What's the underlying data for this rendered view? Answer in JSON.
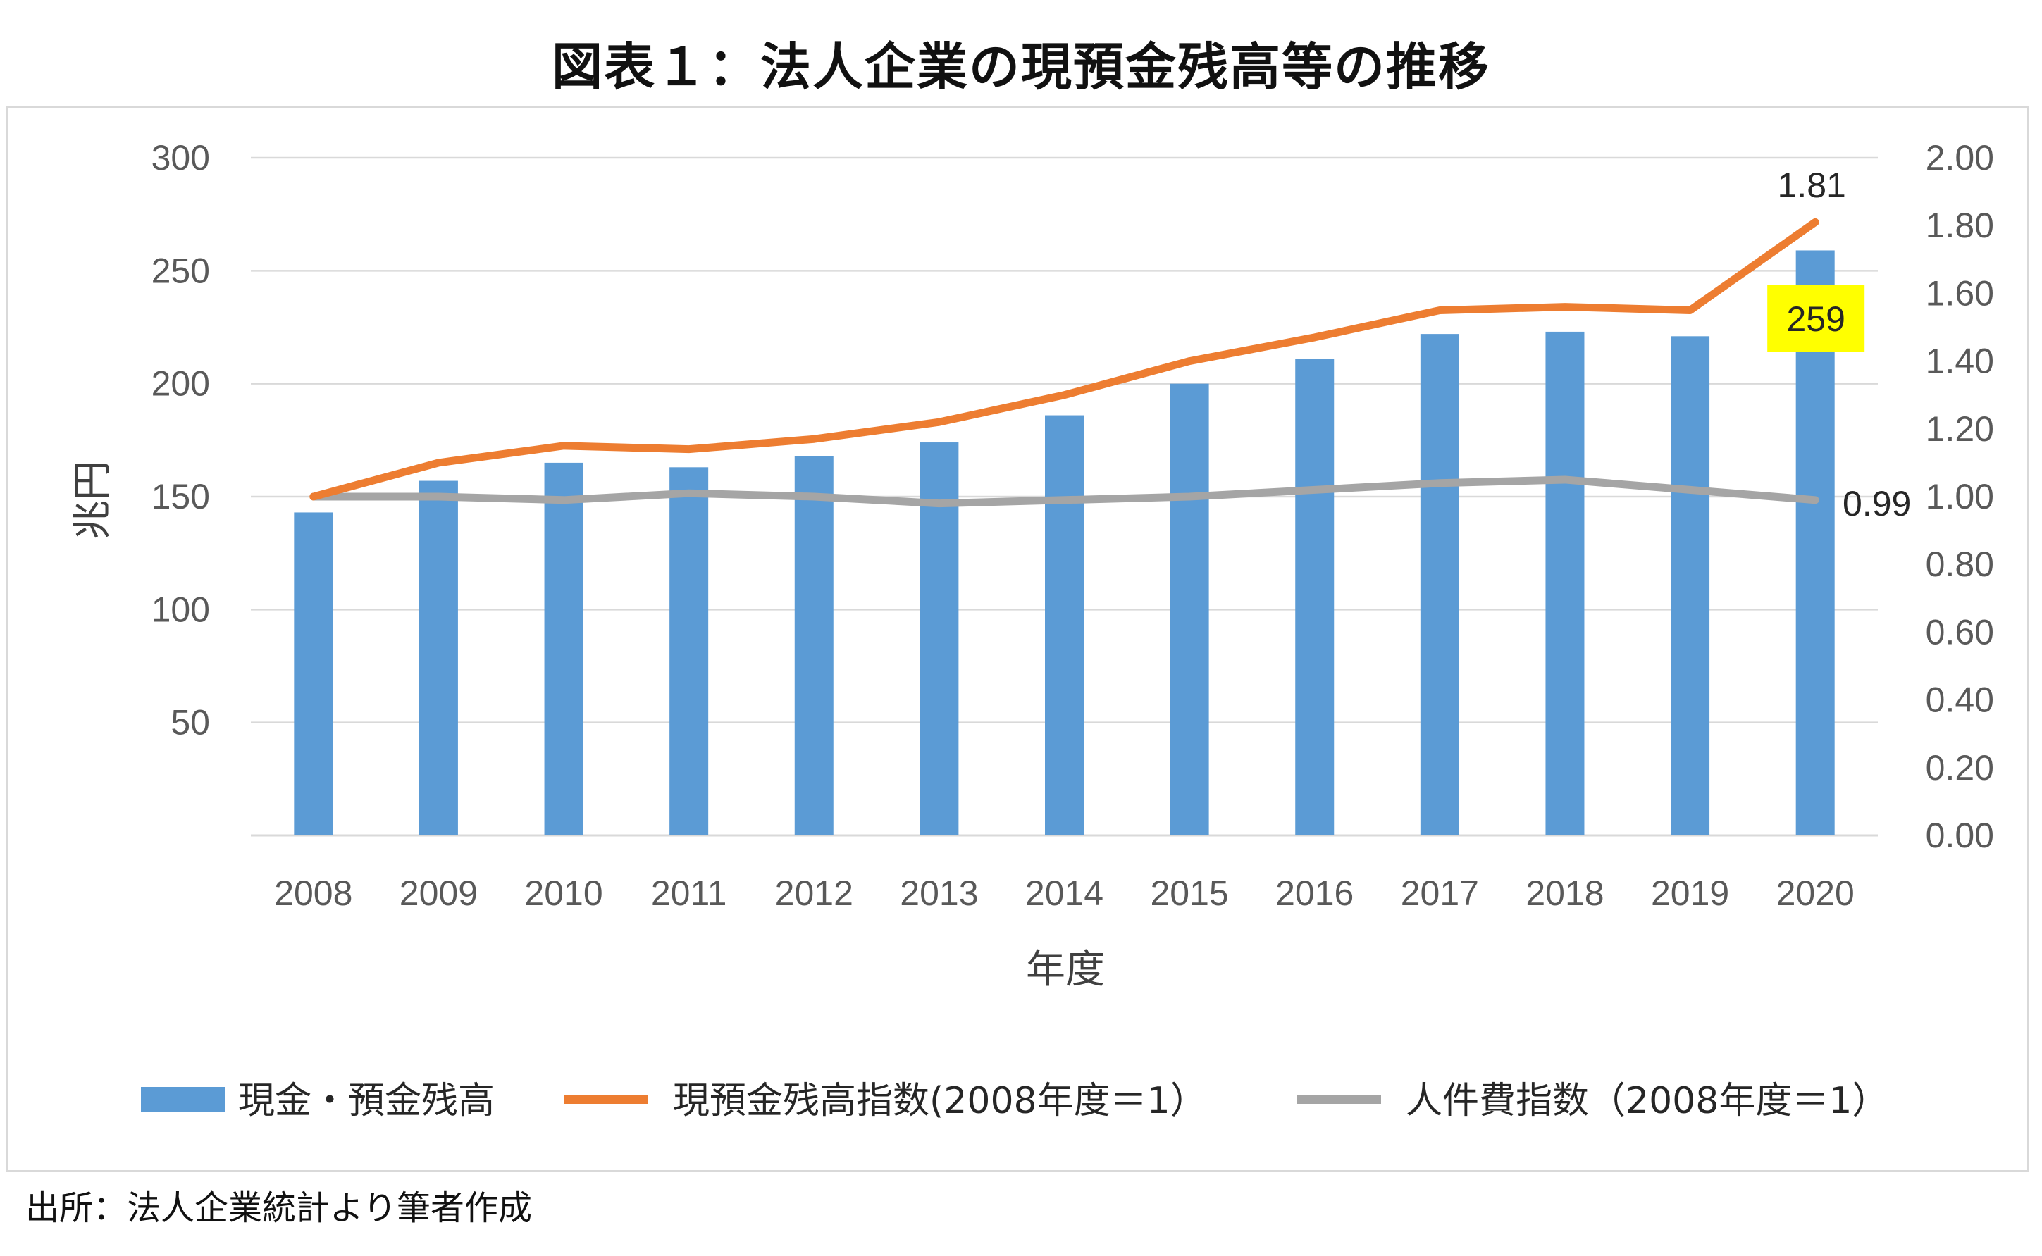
{
  "title": "図表１：法人企業の現預金残高等の推移",
  "source": "出所：法人企業統計より筆者作成",
  "chart_data": {
    "type": "bar",
    "categories": [
      "2008",
      "2009",
      "2010",
      "2011",
      "2012",
      "2013",
      "2014",
      "2015",
      "2016",
      "2017",
      "2018",
      "2019",
      "2020"
    ],
    "xlabel": "年度",
    "ylabel": "兆円",
    "ylim": [
      0,
      300
    ],
    "y_ticks": [
      "50",
      "100",
      "150",
      "200",
      "250",
      "300"
    ],
    "y2lim": [
      0,
      2
    ],
    "y2_ticks": [
      "0.00",
      "0.20",
      "0.40",
      "0.60",
      "0.80",
      "1.00",
      "1.20",
      "1.40",
      "1.60",
      "1.80",
      "2.00"
    ],
    "grid": true,
    "legend_position": "bottom",
    "series": [
      {
        "name": "現金・預金残高",
        "type": "bar",
        "axis": "left",
        "color": "#5b9bd5",
        "values": [
          143,
          157,
          165,
          163,
          168,
          174,
          186,
          200,
          211,
          222,
          223,
          221,
          259
        ]
      },
      {
        "name": "現預金残高指数(2008年度＝1）",
        "type": "line",
        "axis": "right",
        "color": "#ed7d31",
        "values": [
          1.0,
          1.1,
          1.15,
          1.14,
          1.17,
          1.22,
          1.3,
          1.4,
          1.47,
          1.55,
          1.56,
          1.55,
          1.81
        ]
      },
      {
        "name": "人件費指数（2008年度＝1）",
        "type": "line",
        "axis": "right",
        "color": "#a5a5a5",
        "values": [
          1.0,
          1.0,
          0.99,
          1.01,
          1.0,
          0.98,
          0.99,
          1.0,
          1.02,
          1.04,
          1.05,
          1.02,
          0.99
        ]
      }
    ],
    "data_labels": {
      "bar_last": "259",
      "orange_last": "1.81",
      "gray_last": "0.99"
    },
    "highlight_color": "#ffff00"
  }
}
